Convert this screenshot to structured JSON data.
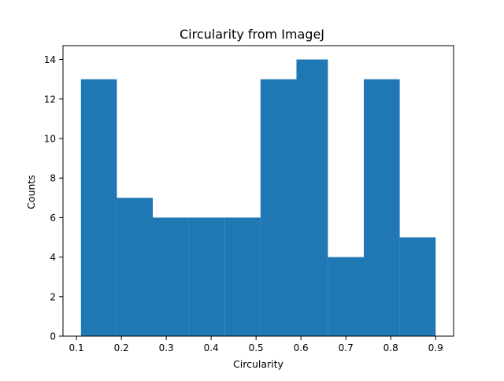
{
  "chart_data": {
    "type": "bar",
    "title": "Circularity from ImageJ",
    "xlabel": "Circularity",
    "ylabel": "Counts",
    "bins": [
      {
        "start": 0.11,
        "end": 0.19,
        "count": 13
      },
      {
        "start": 0.19,
        "end": 0.27,
        "count": 7
      },
      {
        "start": 0.27,
        "end": 0.35,
        "count": 6
      },
      {
        "start": 0.35,
        "end": 0.43,
        "count": 6
      },
      {
        "start": 0.43,
        "end": 0.51,
        "count": 6
      },
      {
        "start": 0.51,
        "end": 0.59,
        "count": 13
      },
      {
        "start": 0.59,
        "end": 0.66,
        "count": 14
      },
      {
        "start": 0.66,
        "end": 0.74,
        "count": 4
      },
      {
        "start": 0.74,
        "end": 0.82,
        "count": 13
      },
      {
        "start": 0.82,
        "end": 0.9,
        "count": 5
      }
    ],
    "xlim": [
      0.07,
      0.94
    ],
    "ylim": [
      0,
      14.7
    ],
    "xticks": [
      0.1,
      0.2,
      0.3,
      0.4,
      0.5,
      0.6,
      0.7,
      0.8,
      0.9
    ],
    "xtick_labels": [
      "0.1",
      "0.2",
      "0.3",
      "0.4",
      "0.5",
      "0.6",
      "0.7",
      "0.8",
      "0.9"
    ],
    "yticks": [
      0,
      2,
      4,
      6,
      8,
      10,
      12,
      14
    ],
    "ytick_labels": [
      "0",
      "2",
      "4",
      "6",
      "8",
      "10",
      "12",
      "14"
    ],
    "bar_color": "#1f77b4",
    "grid": false,
    "legend": false
  }
}
